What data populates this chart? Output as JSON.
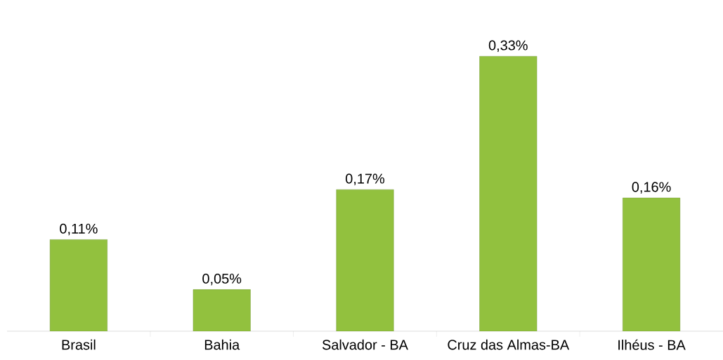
{
  "chart_data": {
    "type": "bar",
    "categories": [
      "Brasil",
      "Bahia",
      "Salvador - BA",
      "Cruz das Almas-BA",
      "Ilhéus - BA"
    ],
    "values": [
      0.11,
      0.05,
      0.17,
      0.33,
      0.16
    ],
    "value_labels": [
      "0,11%",
      "0,05%",
      "0,17%",
      "0,33%",
      "0,16%"
    ],
    "color": "#92c13e",
    "tick_labels": "x"
  }
}
